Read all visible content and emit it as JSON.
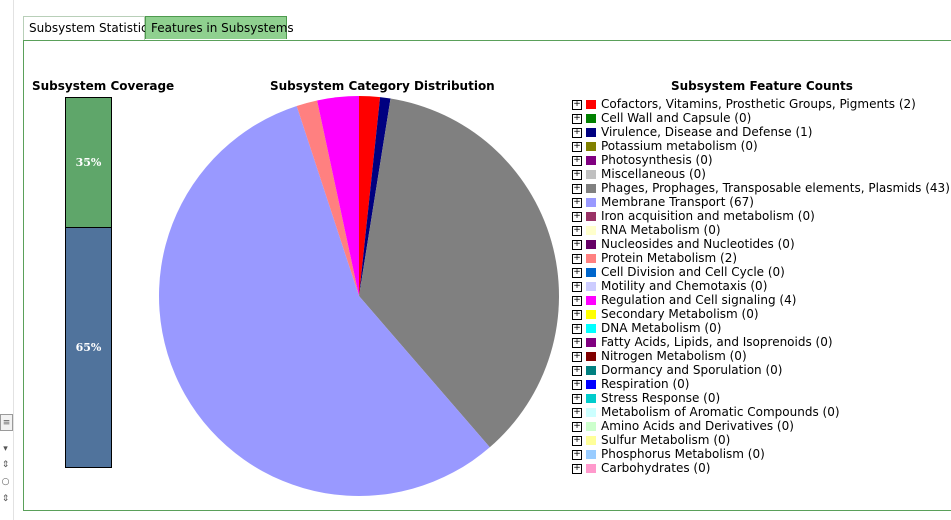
{
  "tabs": [
    {
      "label": "Subsystem Statistics",
      "active": true
    },
    {
      "label": "Features in Subsystems",
      "active": false
    }
  ],
  "coverage": {
    "title": "Subsystem Coverage",
    "segments": [
      {
        "label": "35%",
        "value": 35,
        "color": "#5fa66a"
      },
      {
        "label": "65%",
        "value": 65,
        "color": "#50739c"
      }
    ]
  },
  "pie": {
    "title": "Subsystem Category Distribution"
  },
  "legend": {
    "title": "Subsystem Feature Counts"
  },
  "chart_data": {
    "type": "pie",
    "title": "Subsystem Category Distribution",
    "slices": [
      {
        "label": "Cofactors, Vitamins, Prosthetic Groups, Pigments (2)",
        "value": 2,
        "color": "#ff0000"
      },
      {
        "label": "Cell Wall and Capsule (0)",
        "value": 0,
        "color": "#008000"
      },
      {
        "label": "Virulence, Disease and Defense (1)",
        "value": 1,
        "color": "#000080"
      },
      {
        "label": "Potassium metabolism (0)",
        "value": 0,
        "color": "#808000"
      },
      {
        "label": "Photosynthesis (0)",
        "value": 0,
        "color": "#800080"
      },
      {
        "label": "Miscellaneous (0)",
        "value": 0,
        "color": "#c0c0c0"
      },
      {
        "label": "Phages, Prophages, Transposable elements, Plasmids (43)",
        "value": 43,
        "color": "#808080"
      },
      {
        "label": "Membrane Transport (67)",
        "value": 67,
        "color": "#9999ff"
      },
      {
        "label": "Iron acquisition and metabolism (0)",
        "value": 0,
        "color": "#993366"
      },
      {
        "label": "RNA Metabolism (0)",
        "value": 0,
        "color": "#ffffcc"
      },
      {
        "label": "Nucleosides and Nucleotides (0)",
        "value": 0,
        "color": "#660066"
      },
      {
        "label": "Protein Metabolism (2)",
        "value": 2,
        "color": "#ff8080"
      },
      {
        "label": "Cell Division and Cell Cycle (0)",
        "value": 0,
        "color": "#0066cc"
      },
      {
        "label": "Motility and Chemotaxis (0)",
        "value": 0,
        "color": "#ccccff"
      },
      {
        "label": "Regulation and Cell signaling (4)",
        "value": 4,
        "color": "#ff00ff"
      },
      {
        "label": "Secondary Metabolism (0)",
        "value": 0,
        "color": "#ffff00"
      },
      {
        "label": "DNA Metabolism (0)",
        "value": 0,
        "color": "#00ffff"
      },
      {
        "label": "Fatty Acids, Lipids, and Isoprenoids (0)",
        "value": 0,
        "color": "#800080"
      },
      {
        "label": "Nitrogen Metabolism (0)",
        "value": 0,
        "color": "#800000"
      },
      {
        "label": "Dormancy and Sporulation (0)",
        "value": 0,
        "color": "#008080"
      },
      {
        "label": "Respiration (0)",
        "value": 0,
        "color": "#0000ff"
      },
      {
        "label": "Stress Response (0)",
        "value": 0,
        "color": "#00cccc"
      },
      {
        "label": "Metabolism of Aromatic Compounds (0)",
        "value": 0,
        "color": "#ccffff"
      },
      {
        "label": "Amino Acids and Derivatives (0)",
        "value": 0,
        "color": "#ccffcc"
      },
      {
        "label": "Sulfur Metabolism (0)",
        "value": 0,
        "color": "#ffff99"
      },
      {
        "label": "Phosphorus Metabolism (0)",
        "value": 0,
        "color": "#99ccff"
      },
      {
        "label": "Carbohydrates (0)",
        "value": 0,
        "color": "#ff99cc"
      }
    ]
  }
}
